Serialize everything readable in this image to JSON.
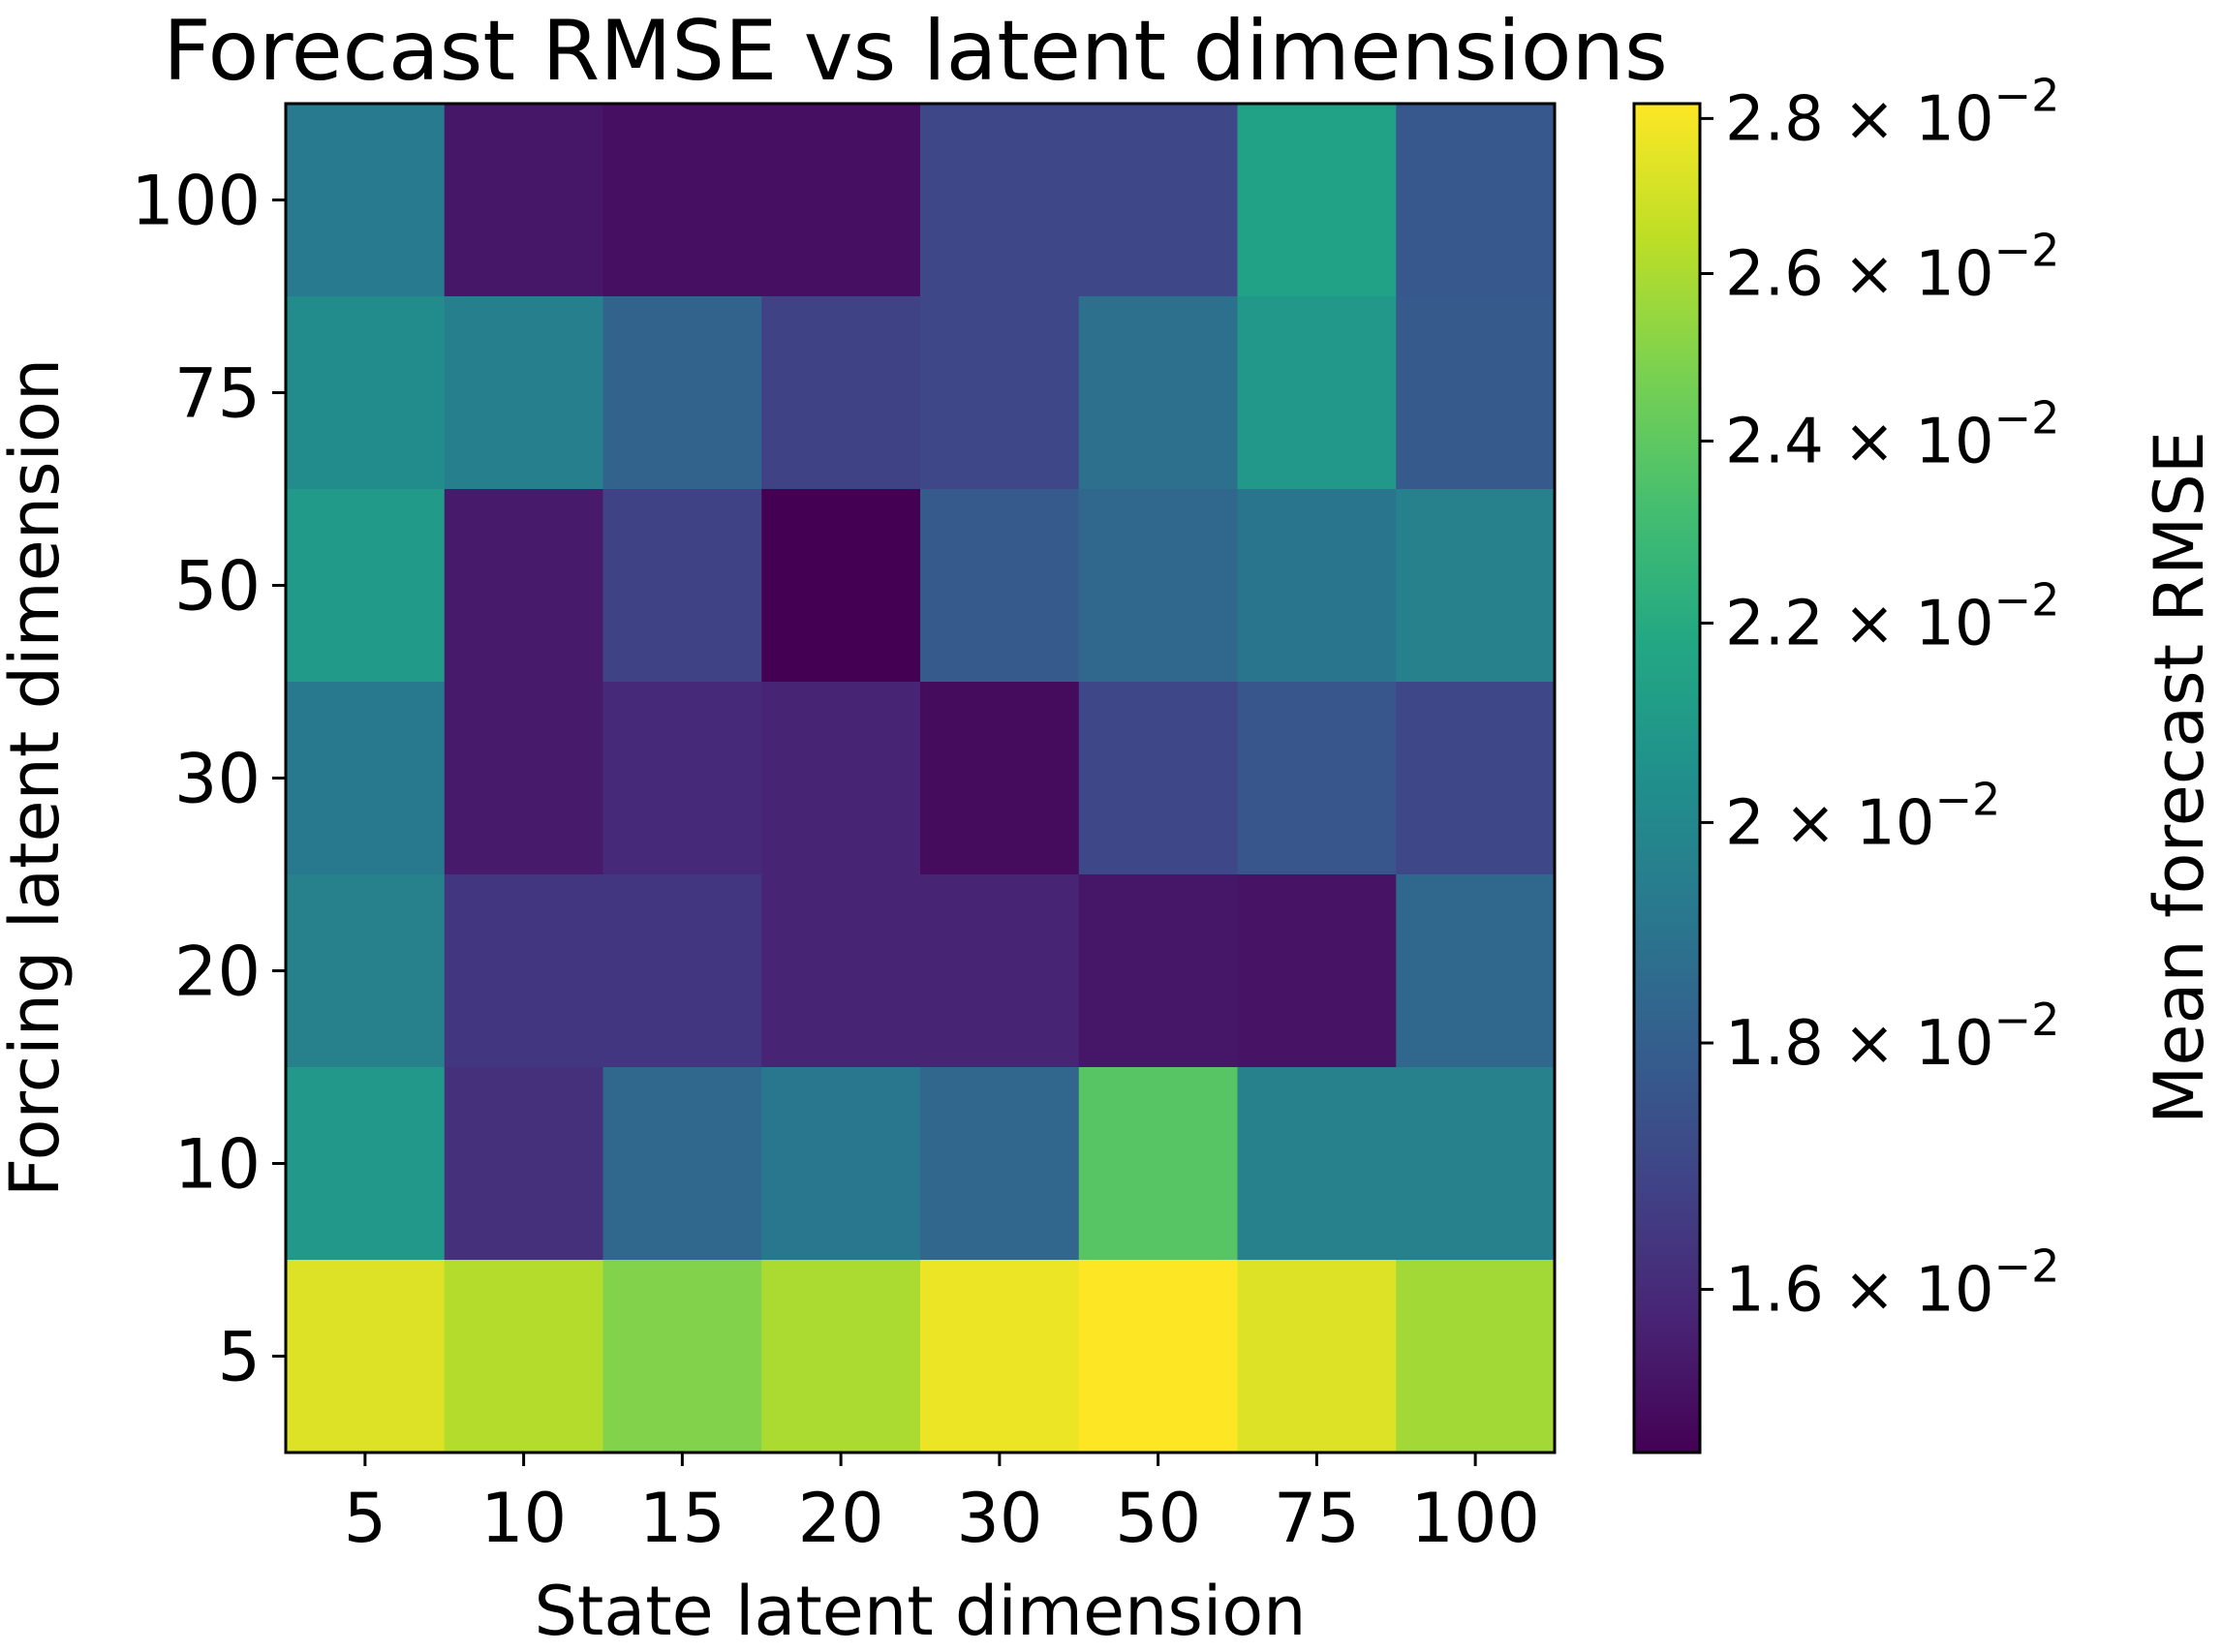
{
  "chart_data": {
    "type": "heatmap",
    "title": "Forecast RMSE vs latent dimensions",
    "xlabel": "State latent dimension",
    "ylabel": "Forcing latent dimension",
    "colorbar_label": "Mean forecast RMSE",
    "colormap": "viridis",
    "color_scale": "log",
    "x_categories": [
      "5",
      "10",
      "15",
      "20",
      "30",
      "50",
      "75",
      "100"
    ],
    "y_categories": [
      "100",
      "75",
      "50",
      "30",
      "20",
      "10",
      "5"
    ],
    "values": [
      [
        0.01925,
        0.0154,
        0.0152,
        0.0152,
        0.017,
        0.017,
        0.0214,
        0.0177
      ],
      [
        0.0202,
        0.0195,
        0.0182,
        0.0168,
        0.017,
        0.0188,
        0.0209,
        0.0178
      ],
      [
        0.021,
        0.0155,
        0.0168,
        0.01475,
        0.0178,
        0.0184,
        0.019,
        0.0196
      ],
      [
        0.0192,
        0.0155,
        0.016,
        0.0158,
        0.0151,
        0.017,
        0.0176,
        0.017
      ],
      [
        0.0196,
        0.0164,
        0.0164,
        0.0158,
        0.0158,
        0.0154,
        0.0153,
        0.0184
      ],
      [
        0.0209,
        0.0162,
        0.0184,
        0.0191,
        0.0183,
        0.0238,
        0.0196,
        0.0196
      ],
      [
        0.0273,
        0.0262,
        0.025,
        0.026,
        0.0277,
        0.0282,
        0.0273,
        0.0258
      ]
    ],
    "colorbar_range": [
      0.0148,
      0.0282
    ],
    "colorbar_ticks": [
      {
        "value": 0.016,
        "mantissa": "1.6",
        "exponent": "−2"
      },
      {
        "value": 0.018,
        "mantissa": "1.8",
        "exponent": "−2"
      },
      {
        "value": 0.02,
        "mantissa": "2",
        "exponent": "−2"
      },
      {
        "value": 0.022,
        "mantissa": "2.2",
        "exponent": "−2"
      },
      {
        "value": 0.024,
        "mantissa": "2.4",
        "exponent": "−2"
      },
      {
        "value": 0.026,
        "mantissa": "2.6",
        "exponent": "−2"
      },
      {
        "value": 0.028,
        "mantissa": "2.8",
        "exponent": "−2"
      }
    ]
  }
}
